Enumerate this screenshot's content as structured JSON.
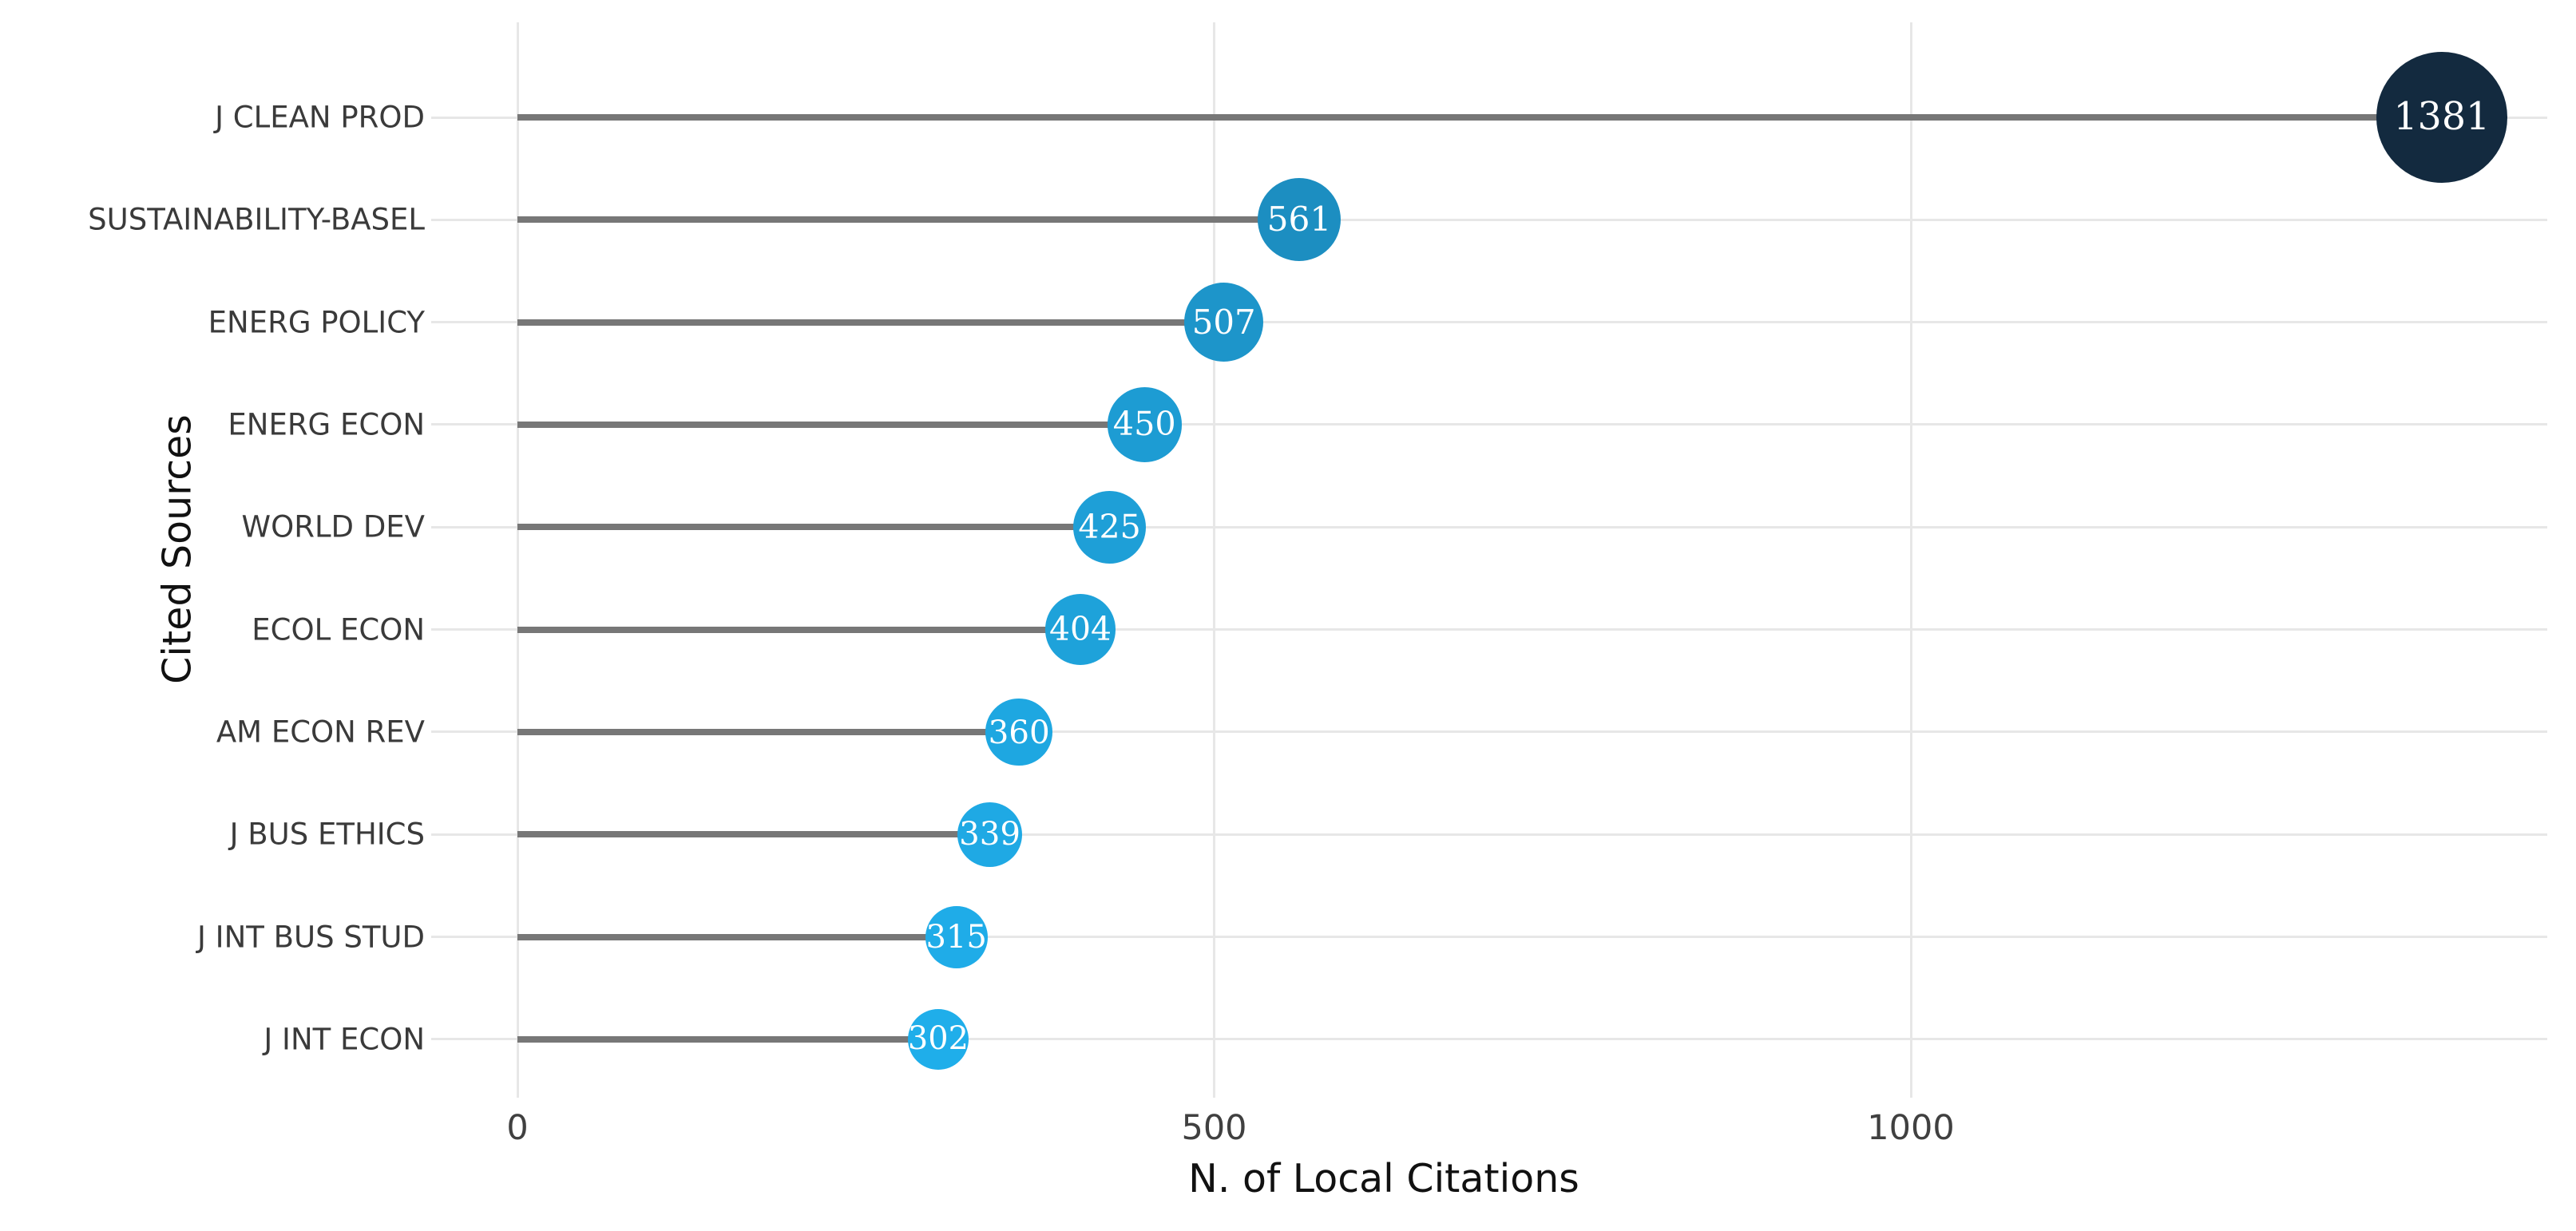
{
  "chart_data": {
    "type": "bar",
    "variant": "lollipop",
    "orientation": "horizontal",
    "title": "",
    "xlabel": "N. of Local Citations",
    "ylabel": "Cited Sources",
    "categories": [
      "J CLEAN PROD",
      "SUSTAINABILITY-BASEL",
      "ENERG POLICY",
      "ENERG ECON",
      "WORLD DEV",
      "ECOL ECON",
      "AM ECON REV",
      "J BUS ETHICS",
      "J INT BUS STUD",
      "J INT ECON"
    ],
    "values": [
      1381,
      561,
      507,
      450,
      425,
      404,
      360,
      339,
      315,
      302
    ],
    "xticks": [
      "0",
      "500",
      "1000"
    ],
    "xtick_values": [
      0,
      500,
      1000
    ],
    "xlim": [
      0,
      1455
    ],
    "grid": true,
    "legend": "none",
    "colors": {
      "bubble_min": "#1FAEEA",
      "bubble_max": "#132A3F",
      "stem": "#777777",
      "grid_line": "#E7E7E7",
      "category_text": "#3A3A3A",
      "tick_text": "#404040",
      "axis_title_text": "#111111",
      "bubble_value_text": "#FFFFFF"
    }
  }
}
